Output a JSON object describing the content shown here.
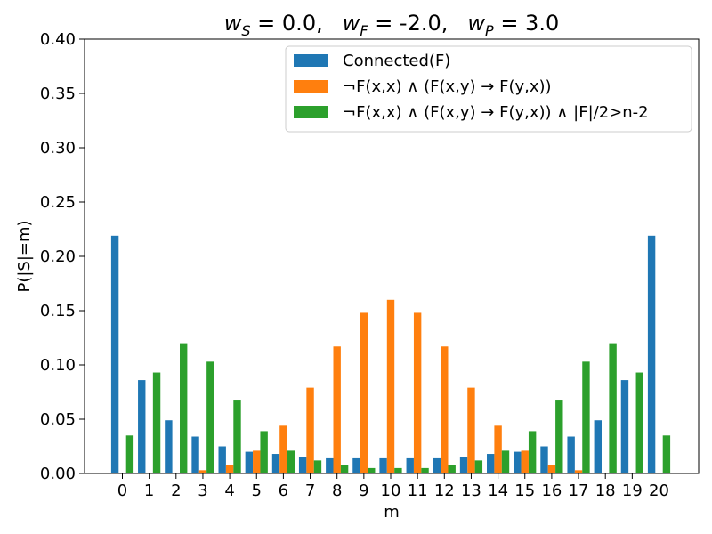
{
  "chart_data": {
    "type": "bar",
    "title_parts": {
      "s_main": "w",
      "s_sub": "S",
      "s_val": " = 0.0,",
      "f_main": "w",
      "f_sub": "F",
      "f_val": " = -2.0,",
      "p_main": "w",
      "p_sub": "P",
      "p_val": " = 3.0"
    },
    "xlabel": "m",
    "ylabel": "P(|S|=m)",
    "ylim": [
      0,
      0.4
    ],
    "yticks": [
      "0.00",
      "0.05",
      "0.10",
      "0.15",
      "0.20",
      "0.25",
      "0.30",
      "0.35",
      "0.40"
    ],
    "ytick_values": [
      0,
      0.05,
      0.1,
      0.15,
      0.2,
      0.25,
      0.3,
      0.35,
      0.4
    ],
    "categories": [
      "0",
      "1",
      "2",
      "3",
      "4",
      "5",
      "6",
      "7",
      "8",
      "9",
      "10",
      "11",
      "12",
      "13",
      "14",
      "15",
      "16",
      "17",
      "18",
      "19",
      "20"
    ],
    "legend_position": "top-right",
    "series": [
      {
        "name": "Connected(F)",
        "color": "#1f77b4",
        "values": [
          0.219,
          0.086,
          0.049,
          0.034,
          0.025,
          0.02,
          0.018,
          0.015,
          0.014,
          0.014,
          0.014,
          0.014,
          0.014,
          0.015,
          0.018,
          0.02,
          0.025,
          0.034,
          0.049,
          0.086,
          0.219
        ]
      },
      {
        "name": "¬F(x,x) ∧ (F(x,y) → F(y,x))",
        "color": "#ff7f0e",
        "values": [
          0.0,
          0.0,
          0.0005,
          0.003,
          0.008,
          0.021,
          0.044,
          0.079,
          0.117,
          0.148,
          0.16,
          0.148,
          0.117,
          0.079,
          0.044,
          0.021,
          0.008,
          0.003,
          0.0005,
          0.0,
          0.0
        ]
      },
      {
        "name": "¬F(x,x) ∧ (F(x,y) → F(y,x)) ∧ |F|/2>n-2",
        "color": "#2ca02c",
        "values": [
          0.035,
          0.093,
          0.12,
          0.103,
          0.068,
          0.039,
          0.021,
          0.012,
          0.008,
          0.005,
          0.005,
          0.005,
          0.008,
          0.012,
          0.021,
          0.039,
          0.068,
          0.103,
          0.12,
          0.093,
          0.035
        ]
      }
    ]
  }
}
